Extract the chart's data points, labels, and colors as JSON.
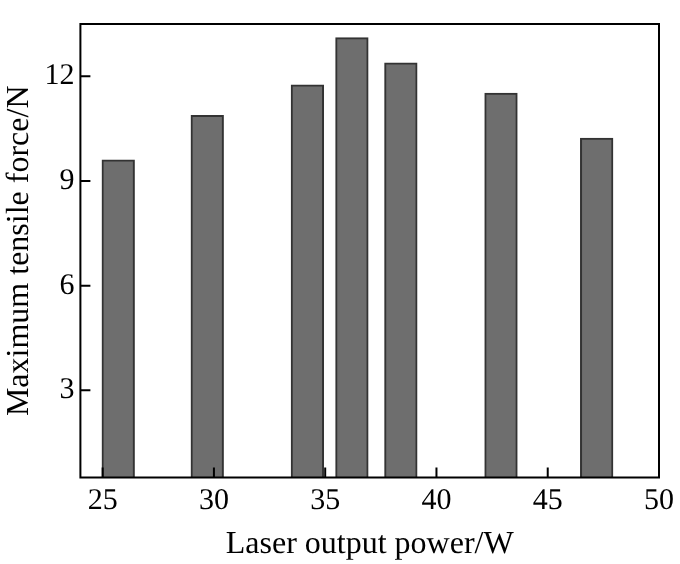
{
  "chart_data": {
    "type": "bar",
    "xlabel": "Laser output power/W",
    "ylabel": "Maximum tensile force/N",
    "x": [
      25.7,
      29.7,
      34.2,
      36.2,
      38.4,
      42.9,
      47.2
    ],
    "values": [
      9.6,
      10.87,
      11.75,
      13.1,
      12.38,
      11.51,
      10.22
    ],
    "color": "#6e6e6e",
    "xlim": [
      24,
      50
    ],
    "xticks": [
      25,
      30,
      35,
      40,
      45,
      50
    ],
    "ylim": [
      0.5,
      13.5
    ],
    "yticks": [
      3,
      6,
      9,
      12
    ],
    "grid": false
  }
}
